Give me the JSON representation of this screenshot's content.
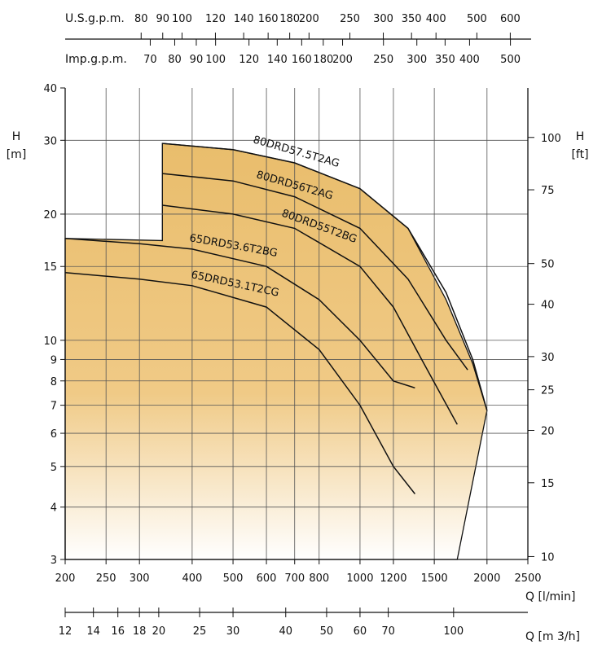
{
  "chart_data": {
    "type": "line",
    "title": "",
    "xscale": "log",
    "yscale": "log",
    "xlabel": "Q [l/min]",
    "ylabel_left": "H\n[m]",
    "ylabel_right": "H\n[ft]",
    "xlim": [
      200,
      2500
    ],
    "ylim": [
      3,
      40
    ],
    "grid": true,
    "x_ticks": [
      "200",
      "250",
      "300",
      "400",
      "500",
      "600",
      "700",
      "800",
      "1000",
      "1200",
      "1500",
      "2000",
      "2500"
    ],
    "y_ticks": [
      "3",
      "4",
      "5",
      "6",
      "7",
      "8",
      "9",
      "10",
      "15",
      "20",
      "30",
      "40"
    ],
    "ft_ticks": [
      "10",
      "15",
      "20",
      "25",
      "30",
      "40",
      "50",
      "75",
      "100"
    ],
    "m3h_label": "Q [m 3/h]",
    "m3h_ticks": [
      "12",
      "14",
      "16",
      "18",
      "20",
      "25",
      "30",
      "40",
      "50",
      "60",
      "70",
      "100"
    ],
    "usgpm_label": "U.S.g.p.m.",
    "usgpm_ticks": [
      "80",
      "90",
      "100",
      "120",
      "140",
      "160",
      "180",
      "200",
      "250",
      "300",
      "350",
      "400",
      "500",
      "600"
    ],
    "impgpm_label": "Imp.g.p.m.",
    "impgpm_ticks": [
      "70",
      "80",
      "90",
      "100",
      "120",
      "140",
      "160",
      "180",
      "200",
      "250",
      "300",
      "350",
      "400",
      "500"
    ],
    "series": [
      {
        "name": "80DRD57.5T2AG",
        "x": [
          340,
          500,
          700,
          1000,
          1300,
          1600,
          1850,
          2000
        ],
        "y": [
          29.5,
          28.5,
          26.5,
          23,
          18.5,
          13,
          9,
          6.8
        ]
      },
      {
        "name": "80DRD56T2AG",
        "x": [
          340,
          500,
          700,
          1000,
          1300,
          1600,
          1800
        ],
        "y": [
          25,
          24,
          22,
          18.5,
          14,
          10,
          8.5
        ]
      },
      {
        "name": "80DRD55T2BG",
        "x": [
          340,
          500,
          700,
          1000,
          1200,
          1400,
          1700
        ],
        "y": [
          21,
          20,
          18.5,
          15,
          12,
          9,
          6.3
        ]
      },
      {
        "name": "65DRD53.6T2BG",
        "x": [
          200,
          300,
          400,
          600,
          800,
          1000,
          1200,
          1350
        ],
        "y": [
          17.5,
          17,
          16.5,
          15,
          12.5,
          10,
          8,
          7.7
        ]
      },
      {
        "name": "65DRD53.1T2CG",
        "x": [
          200,
          300,
          400,
          600,
          800,
          1000,
          1200,
          1350
        ],
        "y": [
          14.5,
          14,
          13.5,
          12,
          9.5,
          7,
          5,
          4.3
        ]
      }
    ]
  }
}
